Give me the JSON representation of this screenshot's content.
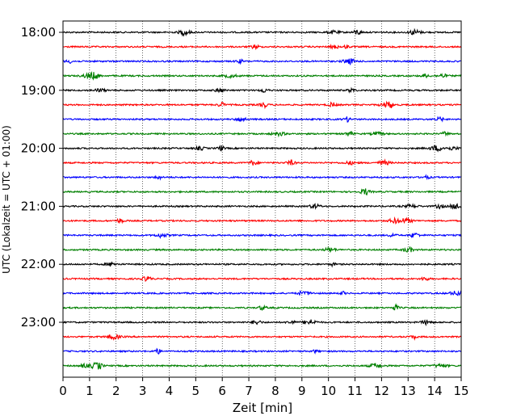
{
  "chart_data": {
    "type": "line",
    "title": "",
    "xlabel": "Zeit  [min]",
    "ylabel": "UTC (Lokalzeit = UTC + 01:00)",
    "xlim": [
      0,
      15
    ],
    "x_ticks": [
      "0",
      "1",
      "2",
      "3",
      "4",
      "5",
      "6",
      "7",
      "8",
      "9",
      "10",
      "11",
      "12",
      "13",
      "14",
      "15"
    ],
    "y_ticks": [
      "18:00",
      "19:00",
      "20:00",
      "21:00",
      "22:00",
      "23:00"
    ],
    "grid": "vertical dotted lines at each minute",
    "legend": "none",
    "traces": {
      "start": "18:00",
      "end": "23:45",
      "interval_minutes": 15,
      "count": 24,
      "color_cycle": [
        "#000000",
        "#ff0000",
        "#0000ff",
        "#008000"
      ],
      "signal": "seismic noise, low amplitude"
    }
  }
}
